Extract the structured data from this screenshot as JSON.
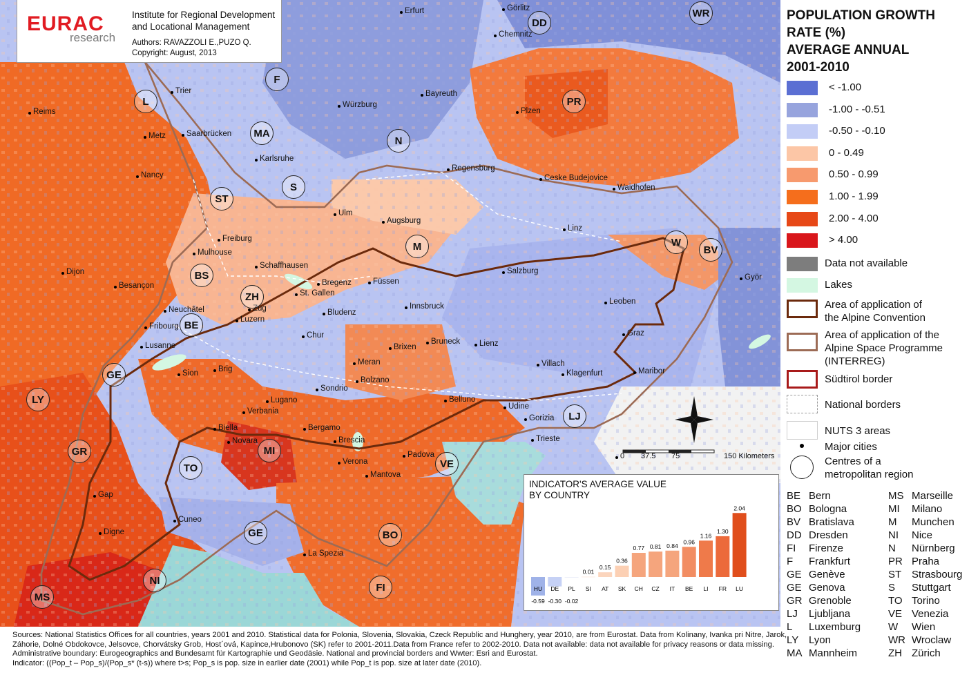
{
  "header": {
    "logo_main": "EURAC",
    "logo_sub": "research",
    "institute_line1": "Institute for Regional Development",
    "institute_line2": "and Locational Management",
    "authors": "Authors: RAVAZZOLI E.,PUZO Q.",
    "copyright": "Copyright: August, 2013"
  },
  "legend": {
    "title_lines": [
      "POPULATION GROWTH",
      "RATE (%)",
      "AVERAGE ANNUAL",
      "2001-2010"
    ],
    "classes": [
      {
        "label": "< -1.00",
        "color": "#5b6fd3"
      },
      {
        "label": "-1.00 - -0.51",
        "color": "#97a4dd"
      },
      {
        "label": "-0.50 - -0.10",
        "color": "#c3cdf6"
      },
      {
        "label": "0  - 0.49",
        "color": "#fcc6a6"
      },
      {
        "label": "0.50 - 0.99",
        "color": "#f79a6e"
      },
      {
        "label": "1.00 - 1.99",
        "color": "#f56e1c"
      },
      {
        "label": "2.00 - 4.00",
        "color": "#e74817"
      },
      {
        "label": "> 4.00",
        "color": "#d9161b"
      },
      {
        "label": "Data not available",
        "color": "#7d7d7d"
      },
      {
        "label": "Lakes",
        "color": "#d4f7e2"
      }
    ],
    "lines": [
      {
        "label": "Area of application of\nthe Alpine Convention",
        "color": "#6b2a0c"
      },
      {
        "label": "Area of application of the\nAlpine Space Programme\n(INTERREG)",
        "color": "#9c6b55"
      },
      {
        "label": "Südtirol border",
        "color": "#a81a1a"
      },
      {
        "label": "National borders",
        "color": "#9a9a9a"
      },
      {
        "label": "NUTS 3 areas",
        "color": "#cfcfcf"
      }
    ],
    "major_cities": "Major cities",
    "centres": "Centres of a\nmetropolitan region"
  },
  "abbreviations": {
    "left": [
      [
        "BE",
        "Bern"
      ],
      [
        "BO",
        "Bologna"
      ],
      [
        "BV",
        "Bratislava"
      ],
      [
        "DD",
        "Dresden"
      ],
      [
        "FI",
        "Firenze"
      ],
      [
        "F",
        "Frankfurt"
      ],
      [
        "GE",
        "Genève"
      ],
      [
        "GE",
        "Genova"
      ],
      [
        "GR",
        "Grenoble"
      ],
      [
        "LJ",
        "Ljubljana"
      ],
      [
        "L",
        "Luxemburg"
      ],
      [
        "LY",
        "Lyon"
      ],
      [
        "MA",
        "Mannheim"
      ]
    ],
    "right": [
      [
        "MS",
        "Marseille"
      ],
      [
        "MI",
        "Milano"
      ],
      [
        "M",
        "Munchen"
      ],
      [
        "NI",
        "Nice"
      ],
      [
        "N",
        "Nürnberg"
      ],
      [
        "PR",
        "Praha"
      ],
      [
        "ST",
        "Strasbourg"
      ],
      [
        "S",
        "Stuttgart"
      ],
      [
        "TO",
        "Torino"
      ],
      [
        "VE",
        "Venezia"
      ],
      [
        "W",
        "Wien"
      ],
      [
        "WR",
        "Wroclaw"
      ],
      [
        "ZH",
        "Zürich"
      ]
    ]
  },
  "scale": {
    "ticks": [
      "0",
      "37.5",
      "75",
      "150 Kilometers"
    ]
  },
  "cities": [
    {
      "name": "Erfurt"
    },
    {
      "name": "Görlitz"
    },
    {
      "name": "Chemnitz"
    },
    {
      "name": "Trier"
    },
    {
      "name": "Reims"
    },
    {
      "name": "Metz"
    },
    {
      "name": "Saarbrücken"
    },
    {
      "name": "Würzburg"
    },
    {
      "name": "Bayreuth"
    },
    {
      "name": "Plzen"
    },
    {
      "name": "Karlsruhe"
    },
    {
      "name": "Nancy"
    },
    {
      "name": "Regensburg"
    },
    {
      "name": "Ceske Budejovice"
    },
    {
      "name": "Waidhofen"
    },
    {
      "name": "Ulm"
    },
    {
      "name": "Augsburg"
    },
    {
      "name": "Freiburg"
    },
    {
      "name": "Mulhouse"
    },
    {
      "name": "Linz"
    },
    {
      "name": "Schaffhausen"
    },
    {
      "name": "Dijon"
    },
    {
      "name": "Bregenz"
    },
    {
      "name": "Füssen"
    },
    {
      "name": "Salzburg"
    },
    {
      "name": "Györ"
    },
    {
      "name": "Besançon"
    },
    {
      "name": "St. Gallen"
    },
    {
      "name": "Zug"
    },
    {
      "name": "Luzern"
    },
    {
      "name": "Neuchâtel"
    },
    {
      "name": "Innsbruck"
    },
    {
      "name": "Leoben"
    },
    {
      "name": "Bludenz"
    },
    {
      "name": "Fribourg"
    },
    {
      "name": "Lusanne"
    },
    {
      "name": "Chur"
    },
    {
      "name": "Bruneck"
    },
    {
      "name": "Brixen"
    },
    {
      "name": "Lienz"
    },
    {
      "name": "Graz"
    },
    {
      "name": "Meran"
    },
    {
      "name": "Villach"
    },
    {
      "name": "Klagenfurt"
    },
    {
      "name": "Maribor"
    },
    {
      "name": "Sion"
    },
    {
      "name": "Brig"
    },
    {
      "name": "Bolzano"
    },
    {
      "name": "Sondrio"
    },
    {
      "name": "Belluno"
    },
    {
      "name": "Udine"
    },
    {
      "name": "Lugano"
    },
    {
      "name": "Verbania"
    },
    {
      "name": "Gorizia"
    },
    {
      "name": "Biella"
    },
    {
      "name": "Bergamo"
    },
    {
      "name": "Trieste"
    },
    {
      "name": "Novara"
    },
    {
      "name": "Brescia"
    },
    {
      "name": "Padova"
    },
    {
      "name": "Verona"
    },
    {
      "name": "Mantova"
    },
    {
      "name": "Gap"
    },
    {
      "name": "Cuneo"
    },
    {
      "name": "Digne"
    },
    {
      "name": "La Spezia"
    }
  ],
  "metros": [
    "DD",
    "WR",
    "L",
    "F",
    "MA",
    "N",
    "PR",
    "S",
    "ST",
    "M",
    "W",
    "BV",
    "BS",
    "ZH",
    "BE",
    "GE",
    "LY",
    "MI",
    "GR",
    "TO",
    "VE",
    "LJ",
    "GE",
    "BO",
    "NI",
    "FI",
    "MS"
  ],
  "chart_data": {
    "type": "bar",
    "title": "INDICATOR'S AVERAGE VALUE\nBY COUNTRY",
    "categories": [
      "HU",
      "DE",
      "PL",
      "SI",
      "AT",
      "SK",
      "CH",
      "CZ",
      "IT",
      "BE",
      "LI",
      "FR",
      "LU"
    ],
    "values": [
      -0.59,
      -0.3,
      -0.02,
      0.01,
      0.15,
      0.36,
      0.77,
      0.81,
      0.84,
      0.96,
      1.16,
      1.3,
      2.04
    ],
    "value_labels": [
      "-0.59",
      "-0.30",
      "-0.02",
      "0.01",
      "0.15",
      "0.36",
      "0.77",
      "0.81",
      "0.84",
      "0.96",
      "1.16",
      "1.30",
      "2.04"
    ]
  },
  "footer": {
    "lines": [
      "Sources: National Statistics Offices for all countries, years 2001 and 2010. Statistical data for Polonia, Slovenia, Slovakia, Czeck Republic and Hunghery, year 2010, are from Eurostat. Data from Kolinany, Ivanka pri Nitre, Jarok,",
      "Záhorie, Dolné Obdokovce, Jelsovce, Chorvátsky Grob, Host´ová, Kapince,Hrubonovo (SK) refer to 2001-2011.Data from France refer to 2002-2010. Data not available: data not available for privacy reasons or data missing.",
      "Administrative boundary: Eurogeographics and Bundesamt für Kartographie und Geodäsie. National and provincial borders and Wwter: Esri and Eurostat.",
      "Indicator: ((Pop_t – Pop_s)/(Pop_s* (t-s)) where t>s; Pop_s is pop. size in earlier date (2001) while Pop_t is pop. size at later date (2010)."
    ]
  }
}
